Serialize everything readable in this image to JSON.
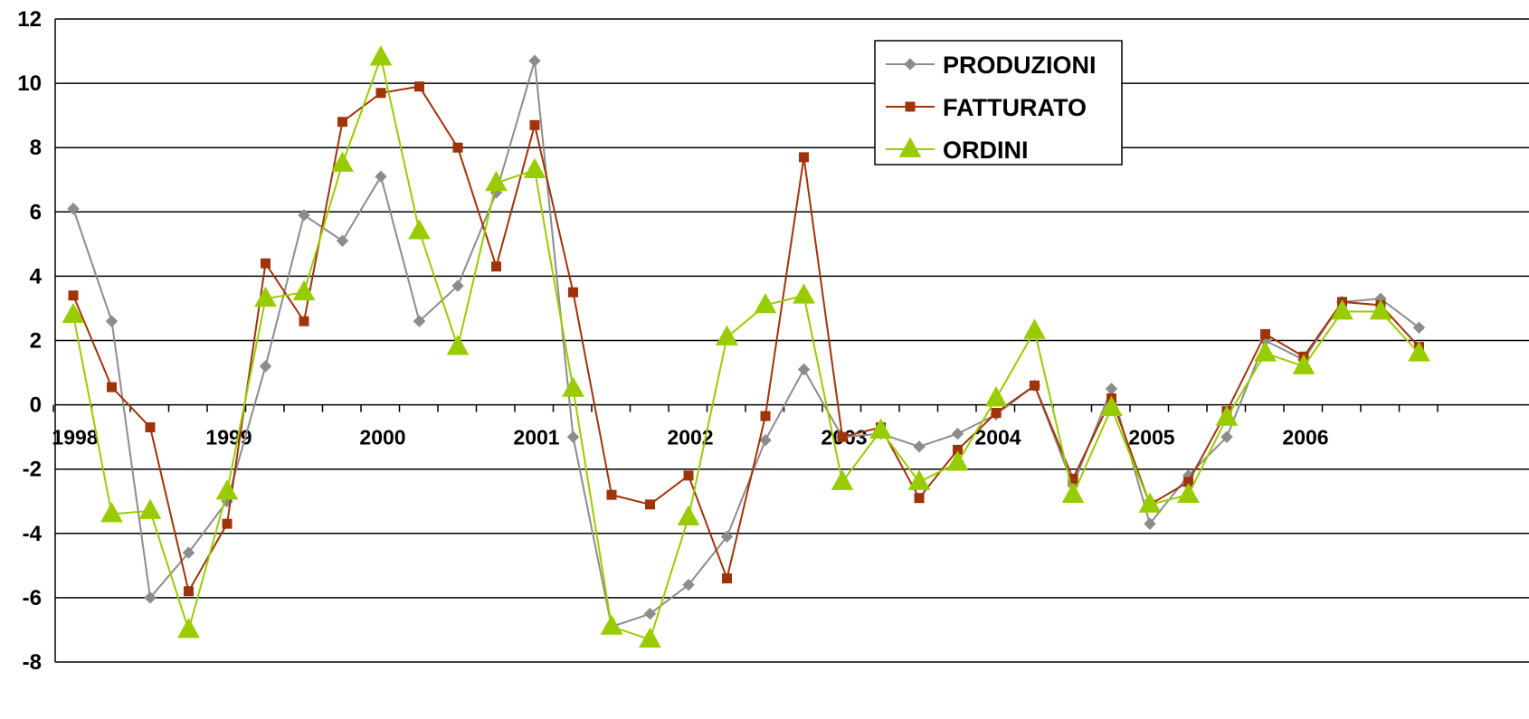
{
  "chart_data": {
    "type": "line",
    "title": "",
    "xlabel": "",
    "ylabel": "",
    "ylim": [
      -8,
      12
    ],
    "y_ticks": [
      -8,
      -6,
      -4,
      -2,
      0,
      2,
      4,
      6,
      8,
      10,
      12
    ],
    "grid": "horizontal",
    "legend_position": "top-right",
    "x_tick_labels": [
      "1998",
      "1999",
      "2000",
      "2001",
      "2002",
      "2003",
      "2004",
      "2005",
      "2006"
    ],
    "points_per_year": 4,
    "series": [
      {
        "name": "PRODUZIONI",
        "color": "#8c8c8c",
        "marker": "diamond",
        "values": [
          6.1,
          2.6,
          -6.0,
          -4.6,
          -3.0,
          1.2,
          5.9,
          5.1,
          7.1,
          2.6,
          3.7,
          6.6,
          10.7,
          -1.0,
          -6.9,
          -6.5,
          -5.6,
          -4.1,
          -1.1,
          1.1,
          -1.0,
          -0.9,
          -1.3,
          -0.9,
          -0.3,
          0.6,
          -2.5,
          0.5,
          -3.7,
          -2.2,
          -1.0,
          2.0,
          1.4,
          3.2,
          3.3,
          2.4
        ]
      },
      {
        "name": "FATTURATO",
        "color": "#a0330a",
        "marker": "square",
        "values": [
          3.4,
          0.55,
          -0.7,
          -5.8,
          -3.7,
          4.4,
          2.6,
          8.8,
          9.7,
          9.9,
          8.0,
          4.3,
          8.7,
          3.5,
          -2.8,
          -3.1,
          -2.2,
          -5.4,
          -0.35,
          7.7,
          -1.0,
          -0.7,
          -2.9,
          -1.4,
          -0.25,
          0.6,
          -2.3,
          0.2,
          -3.1,
          -2.4,
          -0.2,
          2.2,
          1.5,
          3.2,
          3.1,
          1.8
        ]
      },
      {
        "name": "ORDINI",
        "color": "#99cc00",
        "marker": "triangle",
        "values": [
          2.8,
          -3.4,
          -3.3,
          -7.0,
          -2.7,
          3.3,
          3.5,
          7.5,
          10.8,
          5.4,
          1.8,
          6.9,
          7.3,
          0.5,
          -6.9,
          -7.3,
          -3.5,
          2.1,
          3.1,
          3.4,
          -2.4,
          -0.8,
          -2.4,
          -1.8,
          0.2,
          2.3,
          -2.8,
          -0.1,
          -3.1,
          -2.8,
          -0.4,
          1.6,
          1.2,
          2.9,
          2.9,
          1.6
        ]
      }
    ]
  }
}
